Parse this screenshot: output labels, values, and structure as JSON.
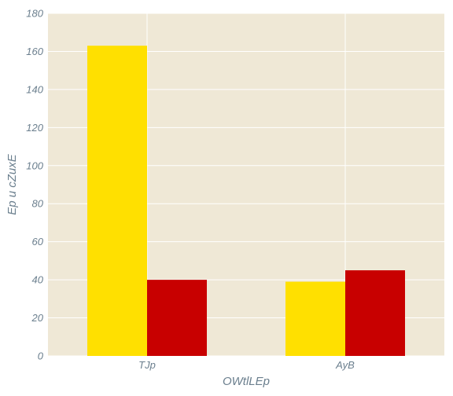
{
  "chart_data": {
    "type": "bar",
    "categories": [
      "TJp",
      "AyB"
    ],
    "series": [
      {
        "values": [
          163,
          39
        ],
        "color": "#ffe000"
      },
      {
        "values": [
          40,
          45
        ],
        "color": "#c80000"
      }
    ],
    "xlabel": "OWtlLEp",
    "ylabel": "Ep u cZuxE",
    "ylim": [
      0,
      180
    ],
    "yticks": [
      0,
      20,
      40,
      60,
      80,
      100,
      120,
      140,
      160,
      180
    ],
    "grid": true,
    "background": "#efe8d6",
    "grid_color": "#ffffff"
  }
}
